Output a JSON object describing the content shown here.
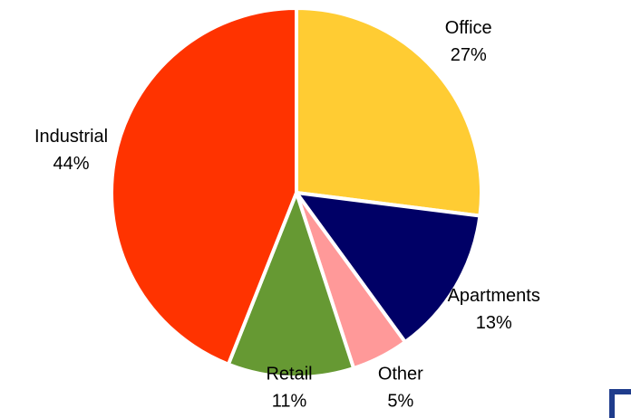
{
  "chart_data": {
    "type": "pie",
    "categories": [
      "Office",
      "Apartments",
      "Other",
      "Retail",
      "Industrial"
    ],
    "values": [
      27,
      13,
      5,
      11,
      44
    ],
    "value_labels": [
      "27%",
      "13%",
      "5%",
      "11%",
      "44%"
    ],
    "colors": [
      "#ffcc33",
      "#000066",
      "#ff9999",
      "#669933",
      "#ff3300"
    ]
  }
}
